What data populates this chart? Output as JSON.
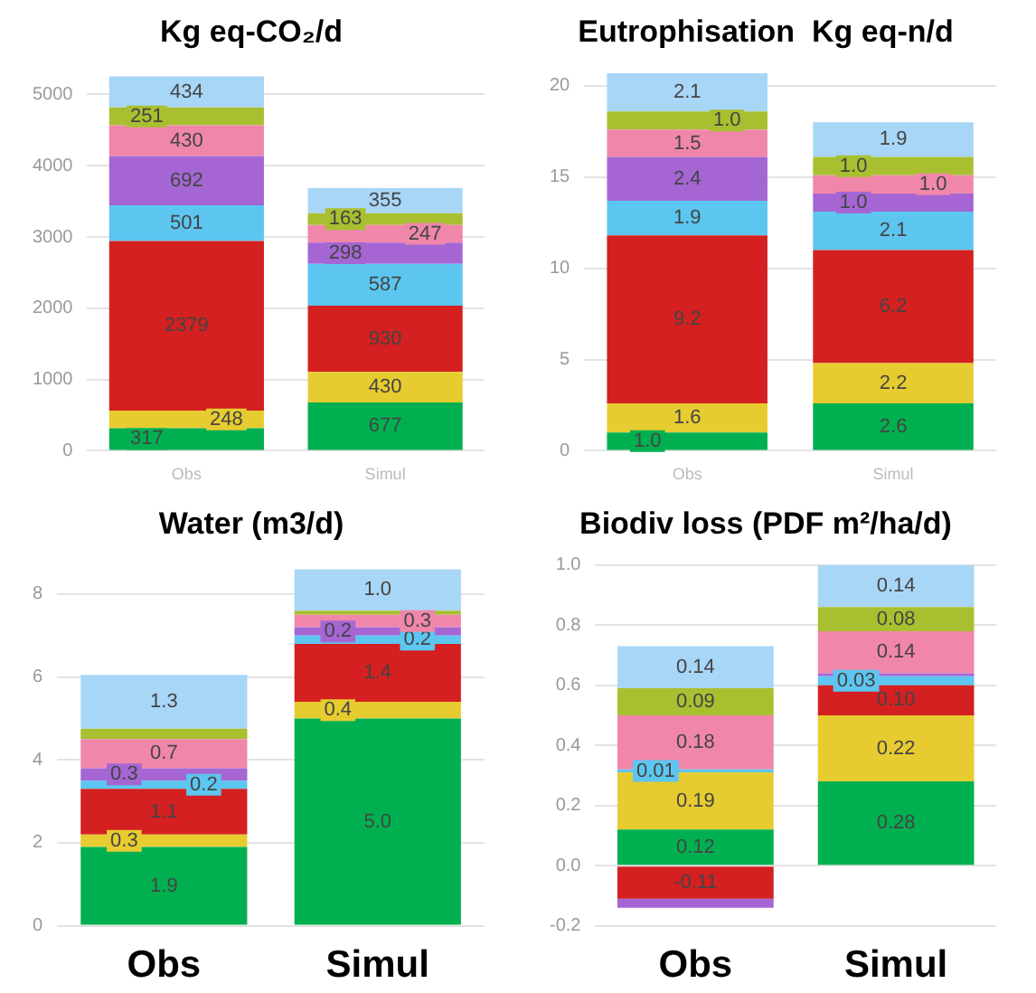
{
  "chart_data": [
    {
      "type": "bar",
      "title": "Kg eq-CO₂/d",
      "categories": [
        "Obs",
        "Simul"
      ],
      "stacked": true,
      "ylim": [
        0,
        5300
      ],
      "yticks": [
        0,
        1000,
        2000,
        3000,
        4000,
        5000
      ],
      "grid": "y",
      "legend": false,
      "data_labels": true,
      "series": [
        {
          "color": "#00b050",
          "values": [
            317,
            677
          ]
        },
        {
          "color": "#e6cc30",
          "values": [
            248,
            430
          ]
        },
        {
          "color": "#d42020",
          "values": [
            2379,
            930
          ]
        },
        {
          "color": "#5cc6f0",
          "values": [
            501,
            587
          ]
        },
        {
          "color": "#a566d4",
          "values": [
            692,
            298
          ]
        },
        {
          "color": "#f087aa",
          "values": [
            430,
            247
          ]
        },
        {
          "color": "#a8c030",
          "values": [
            251,
            163
          ]
        },
        {
          "color": "#a8d6f7",
          "values": [
            434,
            355
          ]
        }
      ]
    },
    {
      "type": "bar",
      "title": "Eutrophisation  Kg eq-n/d",
      "categories": [
        "Obs",
        "Simul"
      ],
      "stacked": true,
      "ylim": [
        0,
        20.7
      ],
      "yticks": [
        0,
        5,
        10,
        15,
        20
      ],
      "grid": "y",
      "legend": false,
      "series": [
        {
          "color": "#00b050",
          "values": [
            1.0,
            2.6
          ],
          "value_labels": [
            "1.0",
            "2.6"
          ]
        },
        {
          "color": "#e6cc30",
          "values": [
            1.6,
            2.2
          ],
          "value_labels": [
            "1.6",
            "2.2"
          ]
        },
        {
          "color": "#d42020",
          "values": [
            9.2,
            6.2
          ],
          "value_labels": [
            "9.2",
            "6.2"
          ]
        },
        {
          "color": "#5cc6f0",
          "values": [
            1.9,
            2.1
          ],
          "value_labels": [
            "1.9",
            "2.1"
          ]
        },
        {
          "color": "#a566d4",
          "values": [
            2.4,
            1.0
          ],
          "value_labels": [
            "2.4",
            "1.0"
          ]
        },
        {
          "color": "#f087aa",
          "values": [
            1.5,
            1.0
          ],
          "value_labels": [
            "1.5",
            "1.0"
          ]
        },
        {
          "color": "#a8c030",
          "values": [
            1.0,
            1.0
          ],
          "value_labels": [
            "1.0",
            "1.0"
          ]
        },
        {
          "color": "#a8d6f7",
          "values": [
            2.1,
            1.9
          ],
          "value_labels": [
            "2.1",
            "1.9"
          ]
        }
      ]
    },
    {
      "type": "bar",
      "title": "Water (m3/d)",
      "categories": [
        "Obs",
        "Simul"
      ],
      "stacked": true,
      "ylim": [
        0,
        8.7
      ],
      "yticks": [
        0,
        2,
        4,
        6,
        8
      ],
      "grid": "y",
      "legend": false,
      "series": [
        {
          "color": "#00b050",
          "values": [
            1.9,
            5.0
          ],
          "value_labels": [
            "1.9",
            "5.0"
          ]
        },
        {
          "color": "#e6cc30",
          "values": [
            0.3,
            0.4
          ],
          "value_labels": [
            "0.3",
            "0.4"
          ]
        },
        {
          "color": "#d42020",
          "values": [
            1.1,
            1.4
          ],
          "value_labels": [
            "1.1",
            "1.4"
          ]
        },
        {
          "color": "#5cc6f0",
          "values": [
            0.2,
            0.2
          ],
          "value_labels": [
            "0.2",
            "0.2"
          ]
        },
        {
          "color": "#a566d4",
          "values": [
            0.3,
            0.2
          ],
          "value_labels": [
            "0.3",
            "0.2"
          ]
        },
        {
          "color": "#f087aa",
          "values": [
            0.7,
            0.3
          ],
          "value_labels": [
            "0.7",
            "0.3"
          ]
        },
        {
          "color": "#a8c030",
          "values": [
            0.25,
            0.1
          ],
          "value_labels": [
            null,
            null
          ]
        },
        {
          "color": "#a8d6f7",
          "values": [
            1.3,
            1.0
          ],
          "value_labels": [
            "1.3",
            "1.0"
          ]
        }
      ]
    },
    {
      "type": "bar",
      "title": "Biodiv loss (PDF m²/ha/d)",
      "categories": [
        "Obs",
        "Simul"
      ],
      "stacked": true,
      "ylim": [
        -0.2,
        1.0
      ],
      "yticks": [
        {
          "value": -0.2,
          "label": "-0.2"
        },
        {
          "value": 0,
          "label": "0.0"
        },
        {
          "value": 0.2,
          "label": "0.2"
        },
        {
          "value": 0.4,
          "label": "0.4"
        },
        {
          "value": 0.6,
          "label": "0.6"
        },
        {
          "value": 0.8,
          "label": "0.8"
        },
        {
          "value": 1.0,
          "label": "1.0"
        }
      ],
      "grid": "y",
      "legend": false,
      "series": [
        {
          "color": "#00b050",
          "values": [
            0.12,
            0.28
          ],
          "value_labels": [
            "0.12",
            "0.28"
          ]
        },
        {
          "color": "#e6cc30",
          "values": [
            0.19,
            0.22
          ],
          "value_labels": [
            "0.19",
            "0.22"
          ]
        },
        {
          "color": "#d42020",
          "values": [
            -0.11,
            0.1
          ],
          "value_labels": [
            "-0.11",
            "0.10"
          ]
        },
        {
          "color": "#5cc6f0",
          "values": [
            0.01,
            0.03
          ],
          "value_labels": [
            "0.01",
            "0.03"
          ]
        },
        {
          "color": "#a566d4",
          "values": [
            -0.03,
            0.01
          ],
          "value_labels": [
            null,
            null
          ]
        },
        {
          "color": "#f087aa",
          "values": [
            0.18,
            0.14
          ],
          "value_labels": [
            "0.18",
            "0.14"
          ]
        },
        {
          "color": "#a8c030",
          "values": [
            0.09,
            0.08
          ],
          "value_labels": [
            "0.09",
            "0.08"
          ]
        },
        {
          "color": "#a8d6f7",
          "values": [
            0.14,
            0.14
          ],
          "value_labels": [
            "0.14",
            "0.14"
          ]
        }
      ]
    }
  ]
}
